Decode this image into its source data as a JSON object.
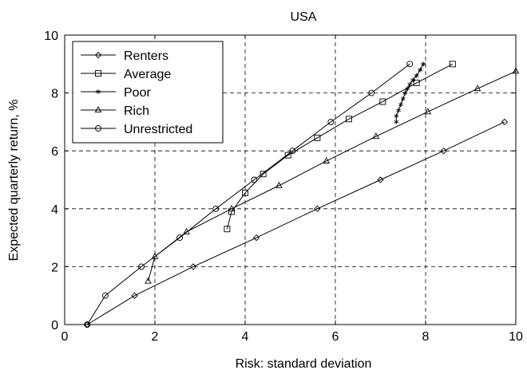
{
  "chart_data": {
    "type": "line",
    "title": "USA",
    "xlabel": "Risk: standard deviation",
    "ylabel": "Expected quarterly return, %",
    "xlim": [
      0,
      10
    ],
    "ylim": [
      0,
      10
    ],
    "xticks": [
      "0",
      "2",
      "4",
      "6",
      "8",
      "10"
    ],
    "yticks": [
      "0",
      "2",
      "4",
      "6",
      "8",
      "10"
    ],
    "grid": true,
    "legend_position": "top-left",
    "series": [
      {
        "name": "Renters",
        "marker": "diamond",
        "x": [
          0.5,
          1.55,
          2.85,
          4.25,
          5.6,
          7.0,
          8.4,
          9.75
        ],
        "y": [
          0.0,
          1.0,
          2.0,
          3.0,
          4.0,
          5.0,
          6.0,
          7.0
        ]
      },
      {
        "name": "Average",
        "marker": "square",
        "x": [
          3.6,
          3.7,
          4.0,
          4.4,
          4.95,
          5.6,
          6.3,
          7.05,
          7.8,
          8.6
        ],
        "y": [
          3.3,
          3.9,
          4.55,
          5.2,
          5.85,
          6.45,
          7.1,
          7.7,
          8.35,
          9.0
        ]
      },
      {
        "name": "Poor",
        "marker": "star",
        "x": [
          7.35,
          7.35,
          7.4,
          7.45,
          7.5,
          7.55,
          7.6,
          7.65,
          7.72,
          7.8,
          7.88,
          7.95
        ],
        "y": [
          7.0,
          7.2,
          7.4,
          7.6,
          7.8,
          8.0,
          8.15,
          8.3,
          8.45,
          8.6,
          8.8,
          9.0
        ]
      },
      {
        "name": "Rich",
        "marker": "triangle",
        "x": [
          1.85,
          2.0,
          2.7,
          3.7,
          4.75,
          5.8,
          6.9,
          8.05,
          9.15,
          10.0
        ],
        "y": [
          1.5,
          2.35,
          3.2,
          4.0,
          4.8,
          5.65,
          6.5,
          7.35,
          8.15,
          8.75
        ]
      },
      {
        "name": "Unrestricted",
        "marker": "circle",
        "x": [
          0.5,
          0.9,
          1.7,
          2.55,
          3.35,
          4.2,
          5.05,
          5.9,
          6.8,
          7.65
        ],
        "y": [
          0.0,
          1.0,
          2.0,
          3.0,
          4.0,
          5.0,
          6.0,
          7.0,
          8.0,
          9.0
        ]
      }
    ]
  }
}
